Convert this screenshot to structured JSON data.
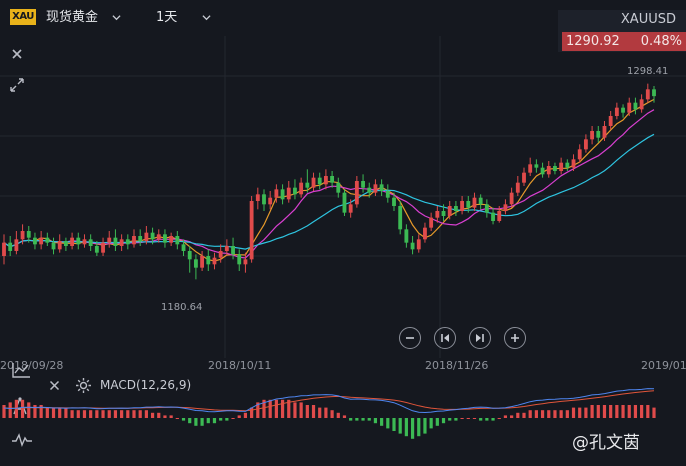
{
  "toolbar": {
    "badge": "XAU",
    "instrument": "现货黄金",
    "period": "1天"
  },
  "quote": {
    "symbol": "XAUUSD",
    "price": "1290.92",
    "change_pct": "0.48%"
  },
  "colors": {
    "up": "#e04b4b",
    "down": "#3cba54",
    "ma1": "#e79a2a",
    "ma2": "#d83fd0",
    "ma3": "#2ec4e0",
    "dif": "#4f86f0",
    "dea": "#e0553a",
    "bg": "#15181f"
  },
  "indicator": {
    "label": "MACD(12,26,9)"
  },
  "watermark": "@孔文茵",
  "chart_data": {
    "type": "candlestick",
    "x_labels": [
      "2018/09/28",
      "2018/10/11",
      "2018/11/26",
      "2019/01"
    ],
    "max_label": "1298.41",
    "min_label": "1180.64",
    "ylim": [
      1165,
      1315
    ],
    "candles": [
      [
        1195,
        1203,
        1190,
        1208
      ],
      [
        1203,
        1198,
        1195,
        1207
      ],
      [
        1198,
        1205,
        1196,
        1210
      ],
      [
        1205,
        1210,
        1202,
        1214
      ],
      [
        1210,
        1206,
        1203,
        1213
      ],
      [
        1206,
        1202,
        1199,
        1209
      ],
      [
        1202,
        1206,
        1199,
        1210
      ],
      [
        1206,
        1203,
        1201,
        1209
      ],
      [
        1203,
        1199,
        1196,
        1206
      ],
      [
        1199,
        1204,
        1197,
        1208
      ],
      [
        1204,
        1201,
        1198,
        1206
      ],
      [
        1201,
        1206,
        1199,
        1209
      ],
      [
        1206,
        1202,
        1199,
        1209
      ],
      [
        1202,
        1205,
        1200,
        1208
      ],
      [
        1205,
        1201,
        1198,
        1208
      ],
      [
        1201,
        1197,
        1195,
        1204
      ],
      [
        1197,
        1203,
        1195,
        1206
      ],
      [
        1203,
        1206,
        1200,
        1210
      ],
      [
        1206,
        1201,
        1198,
        1211
      ],
      [
        1201,
        1205,
        1198,
        1208
      ],
      [
        1205,
        1202,
        1199,
        1208
      ],
      [
        1202,
        1207,
        1200,
        1211
      ],
      [
        1207,
        1204,
        1201,
        1211
      ],
      [
        1204,
        1209,
        1202,
        1213
      ],
      [
        1209,
        1205,
        1202,
        1212
      ],
      [
        1205,
        1208,
        1203,
        1211
      ],
      [
        1208,
        1203,
        1200,
        1211
      ],
      [
        1203,
        1207,
        1201,
        1209
      ],
      [
        1207,
        1202,
        1199,
        1210
      ],
      [
        1202,
        1198,
        1195,
        1205
      ],
      [
        1198,
        1193,
        1185,
        1201
      ],
      [
        1193,
        1188,
        1181,
        1196
      ],
      [
        1188,
        1195,
        1186,
        1198
      ],
      [
        1195,
        1190,
        1186,
        1199
      ],
      [
        1190,
        1194,
        1187,
        1197
      ],
      [
        1194,
        1198,
        1191,
        1202
      ],
      [
        1198,
        1201,
        1195,
        1205
      ],
      [
        1201,
        1196,
        1193,
        1206
      ],
      [
        1196,
        1190,
        1186,
        1199
      ],
      [
        1190,
        1193,
        1185,
        1197
      ],
      [
        1193,
        1228,
        1191,
        1231
      ],
      [
        1228,
        1232,
        1223,
        1236
      ],
      [
        1232,
        1226,
        1222,
        1235
      ],
      [
        1226,
        1230,
        1223,
        1234
      ],
      [
        1230,
        1235,
        1227,
        1238
      ],
      [
        1235,
        1229,
        1226,
        1238
      ],
      [
        1229,
        1236,
        1227,
        1240
      ],
      [
        1236,
        1232,
        1229,
        1241
      ],
      [
        1232,
        1239,
        1230,
        1242
      ],
      [
        1239,
        1236,
        1233,
        1247
      ],
      [
        1236,
        1242,
        1234,
        1245
      ],
      [
        1242,
        1238,
        1235,
        1245
      ],
      [
        1238,
        1243,
        1235,
        1247
      ],
      [
        1243,
        1239,
        1236,
        1246
      ],
      [
        1239,
        1233,
        1230,
        1242
      ],
      [
        1233,
        1221,
        1219,
        1235
      ],
      [
        1221,
        1226,
        1218,
        1229
      ],
      [
        1226,
        1240,
        1224,
        1243
      ],
      [
        1240,
        1236,
        1233,
        1244
      ],
      [
        1236,
        1233,
        1230,
        1239
      ],
      [
        1233,
        1238,
        1231,
        1241
      ],
      [
        1238,
        1234,
        1231,
        1241
      ],
      [
        1234,
        1230,
        1227,
        1238
      ],
      [
        1230,
        1225,
        1222,
        1233
      ],
      [
        1225,
        1211,
        1208,
        1228
      ],
      [
        1211,
        1203,
        1200,
        1214
      ],
      [
        1203,
        1199,
        1196,
        1207
      ],
      [
        1199,
        1205,
        1197,
        1208
      ],
      [
        1205,
        1212,
        1203,
        1215
      ],
      [
        1212,
        1218,
        1210,
        1221
      ],
      [
        1218,
        1222,
        1215,
        1225
      ],
      [
        1222,
        1219,
        1216,
        1226
      ],
      [
        1219,
        1225,
        1217,
        1228
      ],
      [
        1225,
        1222,
        1219,
        1228
      ],
      [
        1222,
        1228,
        1220,
        1231
      ],
      [
        1228,
        1224,
        1221,
        1231
      ],
      [
        1224,
        1230,
        1222,
        1233
      ],
      [
        1230,
        1226,
        1223,
        1232
      ],
      [
        1226,
        1221,
        1218,
        1229
      ],
      [
        1221,
        1216,
        1214,
        1224
      ],
      [
        1216,
        1222,
        1215,
        1225
      ],
      [
        1222,
        1226,
        1220,
        1229
      ],
      [
        1226,
        1233,
        1224,
        1236
      ],
      [
        1233,
        1239,
        1231,
        1243
      ],
      [
        1239,
        1245,
        1237,
        1248
      ],
      [
        1245,
        1250,
        1243,
        1254
      ],
      [
        1250,
        1248,
        1245,
        1253
      ],
      [
        1248,
        1244,
        1242,
        1251
      ],
      [
        1244,
        1249,
        1242,
        1252
      ],
      [
        1249,
        1246,
        1244,
        1251
      ],
      [
        1246,
        1251,
        1244,
        1254
      ],
      [
        1251,
        1248,
        1246,
        1253
      ],
      [
        1248,
        1253,
        1246,
        1256
      ],
      [
        1253,
        1259,
        1251,
        1262
      ],
      [
        1259,
        1265,
        1257,
        1268
      ],
      [
        1265,
        1270,
        1262,
        1273
      ],
      [
        1270,
        1266,
        1263,
        1273
      ],
      [
        1266,
        1273,
        1264,
        1276
      ],
      [
        1273,
        1279,
        1271,
        1282
      ],
      [
        1279,
        1284,
        1277,
        1287
      ],
      [
        1284,
        1281,
        1278,
        1286
      ],
      [
        1281,
        1287,
        1279,
        1290
      ],
      [
        1287,
        1283,
        1280,
        1290
      ],
      [
        1283,
        1289,
        1281,
        1292
      ],
      [
        1289,
        1295,
        1287,
        1298.41
      ],
      [
        1295,
        1290.92,
        1287,
        1297
      ]
    ],
    "ma_periods": [
      5,
      10,
      20
    ],
    "macd": {
      "params": [
        12,
        26,
        9
      ],
      "histogram": [
        5,
        6,
        7,
        7,
        6,
        5,
        5,
        4,
        4,
        4,
        4,
        3,
        3,
        3,
        3,
        3,
        3,
        3,
        3,
        3,
        3,
        3,
        3,
        3,
        2,
        2,
        1,
        1,
        0,
        -1,
        -2,
        -3,
        -3,
        -2,
        -2,
        -1,
        -1,
        0,
        1,
        2,
        4,
        6,
        7,
        7,
        7,
        7,
        7,
        6,
        6,
        5,
        5,
        4,
        4,
        3,
        2,
        1,
        -1,
        -1,
        -1,
        -1,
        -2,
        -3,
        -4,
        -5,
        -6,
        -7,
        -8,
        -7,
        -6,
        -4,
        -3,
        -2,
        -1,
        -1,
        0,
        0,
        0,
        -1,
        -1,
        -1,
        0,
        1,
        1,
        2,
        2,
        3,
        3,
        3,
        3,
        3,
        3,
        3,
        4,
        4,
        4,
        5,
        5,
        5,
        5,
        5,
        5,
        5,
        5,
        5,
        5,
        4
      ]
    }
  }
}
